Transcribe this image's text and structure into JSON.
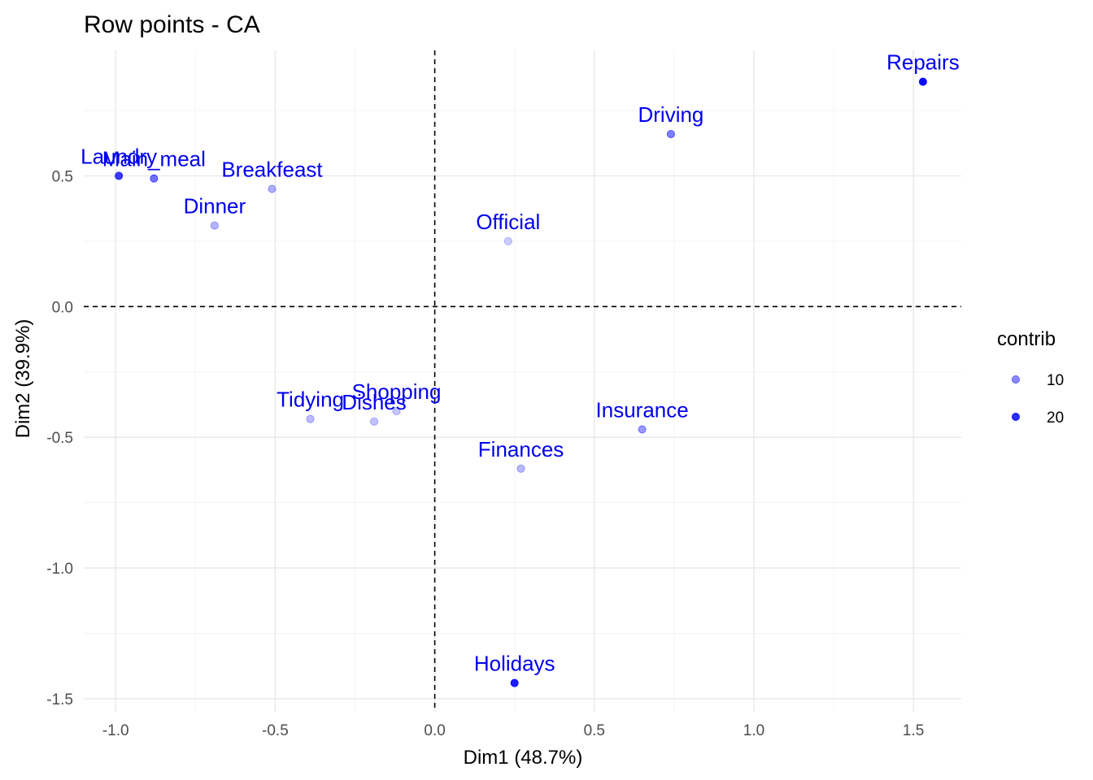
{
  "chart_data": {
    "type": "scatter",
    "title": "Row points - CA",
    "xlabel": "Dim1 (48.7%)",
    "ylabel": "Dim2 (39.9%)",
    "xlim": [
      -1.1,
      1.65
    ],
    "ylim": [
      -1.55,
      0.98
    ],
    "x_ticks": [
      -1.0,
      -0.5,
      0.0,
      0.5,
      1.0,
      1.5
    ],
    "x_tick_labels": [
      "-1.0",
      "-0.5",
      "0.0",
      "0.5",
      "1.0",
      "1.5"
    ],
    "y_ticks": [
      -1.5,
      -1.0,
      -0.5,
      0.0,
      0.5
    ],
    "y_tick_labels": [
      "-1.5",
      "-1.0",
      "-0.5",
      "0.0",
      "0.5"
    ],
    "grid": true,
    "reference_lines": {
      "x": 0,
      "y": 0,
      "style": "dashed"
    },
    "point_color": "#0000ff",
    "label_color": "#0000ee",
    "legend": {
      "title": "contrib",
      "placement": "right",
      "entries": [
        {
          "label": "10",
          "value": 10
        },
        {
          "label": "20",
          "value": 20
        }
      ]
    },
    "points": [
      {
        "label": "Laundry",
        "x": -0.99,
        "y": 0.5,
        "contrib": 18.5
      },
      {
        "label": "Main_meal",
        "x": -0.88,
        "y": 0.49,
        "contrib": 12.5
      },
      {
        "label": "Dinner",
        "x": -0.69,
        "y": 0.31,
        "contrib": 5.0
      },
      {
        "label": "Breakfeast",
        "x": -0.51,
        "y": 0.45,
        "contrib": 5.5
      },
      {
        "label": "Tidying",
        "x": -0.39,
        "y": -0.43,
        "contrib": 4.0
      },
      {
        "label": "Dishes",
        "x": -0.19,
        "y": -0.44,
        "contrib": 3.5
      },
      {
        "label": "Shopping",
        "x": -0.12,
        "y": -0.4,
        "contrib": 3.0
      },
      {
        "label": "Official",
        "x": 0.23,
        "y": 0.25,
        "contrib": 2.0
      },
      {
        "label": "Driving",
        "x": 0.74,
        "y": 0.66,
        "contrib": 11.0
      },
      {
        "label": "Finances",
        "x": 0.27,
        "y": -0.62,
        "contrib": 4.5
      },
      {
        "label": "Insurance",
        "x": 0.65,
        "y": -0.47,
        "contrib": 8.0
      },
      {
        "label": "Repairs",
        "x": 1.53,
        "y": 0.86,
        "contrib": 24.0
      },
      {
        "label": "Holidays",
        "x": 0.25,
        "y": -1.44,
        "contrib": 22.0
      }
    ]
  }
}
